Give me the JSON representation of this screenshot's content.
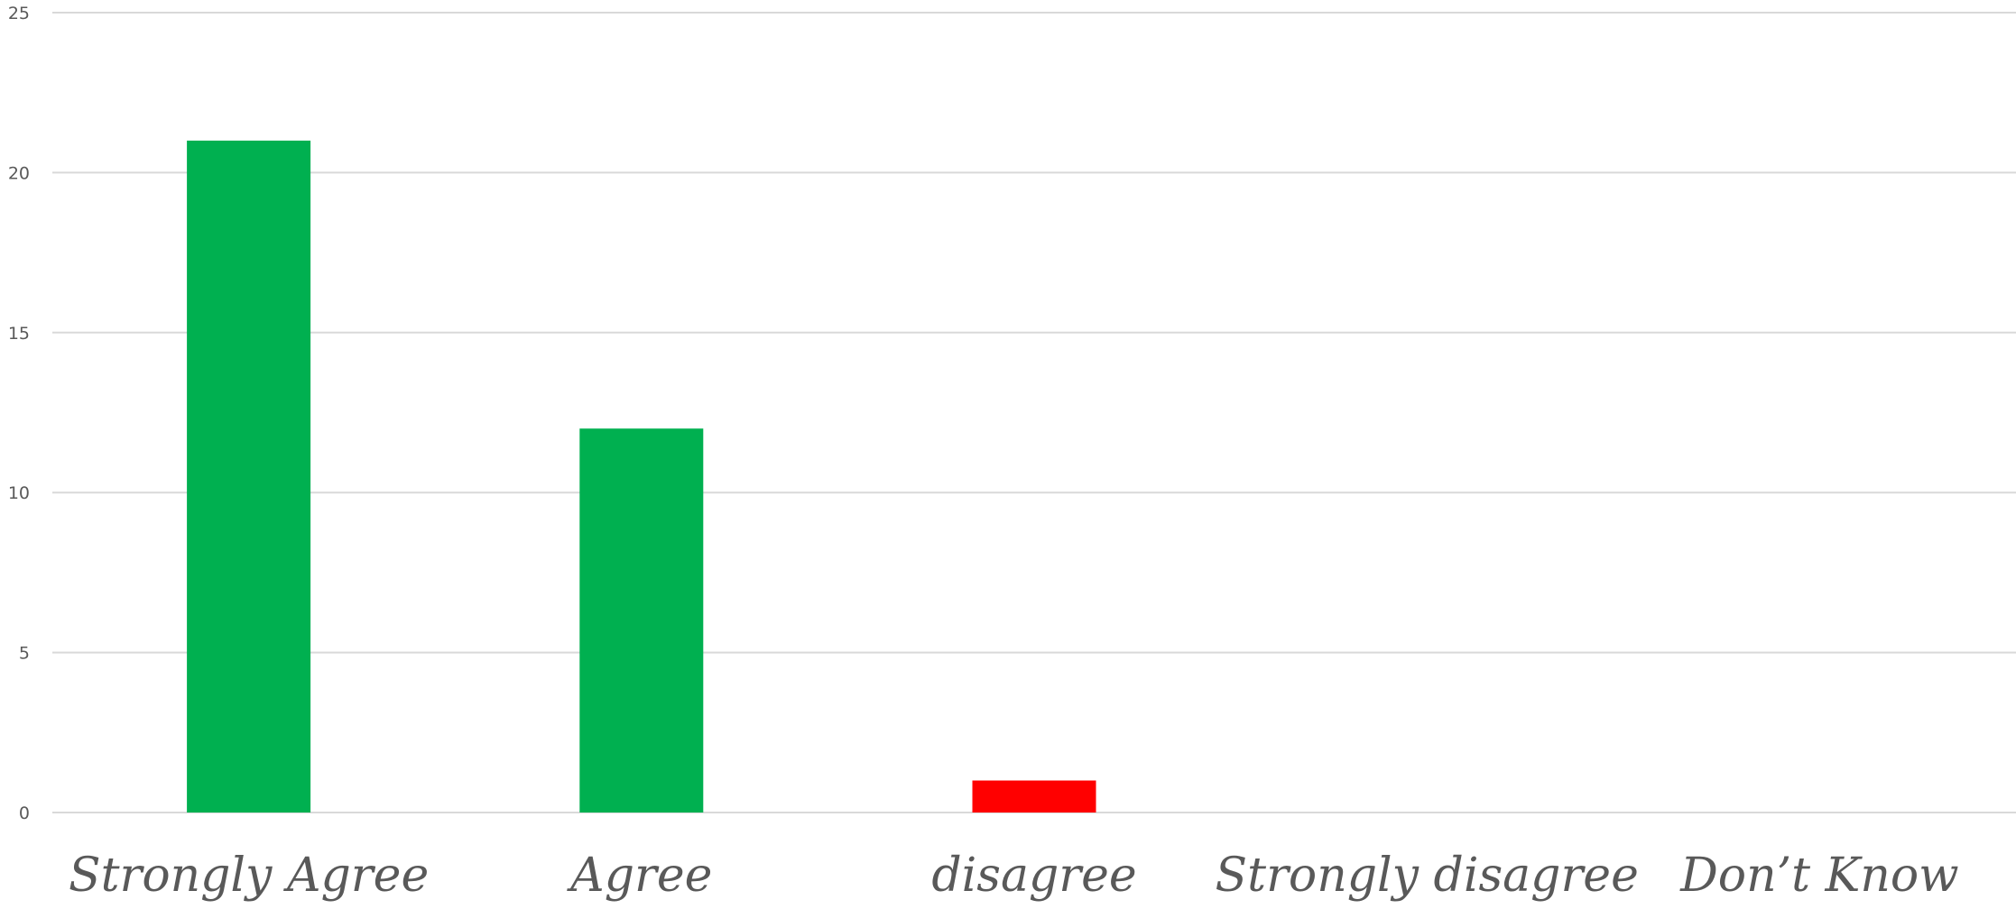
{
  "chart_data": {
    "type": "bar",
    "title": "",
    "xlabel": "",
    "ylabel": "",
    "categories": [
      "Strongly Agree",
      "Agree",
      "disagree",
      "Strongly disagree",
      "Don’t Know"
    ],
    "values": [
      21,
      12,
      1,
      0,
      0
    ],
    "bar_colors": [
      "#00b050",
      "#00b050",
      "#ff0000",
      "#00b050",
      "#00b050"
    ],
    "ylim": [
      0,
      25
    ],
    "yticks": [
      0,
      5,
      10,
      15,
      20,
      25
    ],
    "grid": true,
    "legend": "none"
  }
}
